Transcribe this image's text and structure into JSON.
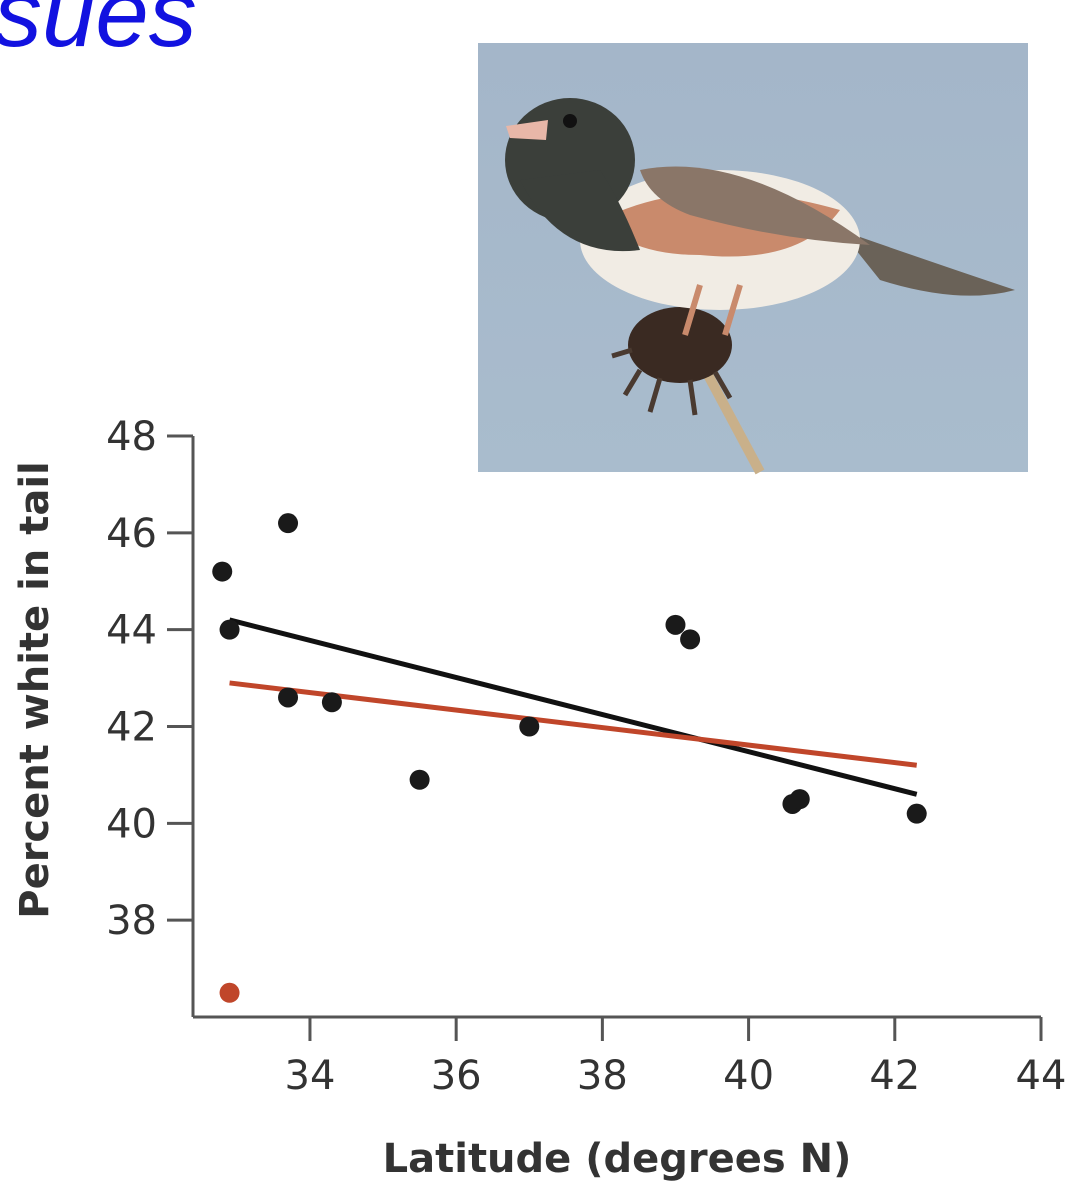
{
  "heading": {
    "text": "sues"
  },
  "photo": {
    "alt": "junco-bird"
  },
  "chart_data": {
    "type": "scatter",
    "xlabel": "Latitude (degrees N)",
    "ylabel": "Percent white in tail",
    "xlim": [
      32.4,
      44
    ],
    "ylim": [
      36,
      48
    ],
    "xticks": [
      34,
      36,
      38,
      40,
      42,
      44
    ],
    "yticks": [
      38,
      40,
      42,
      44,
      46,
      48
    ],
    "grid": false,
    "points": [
      {
        "x": 32.8,
        "y": 45.2,
        "color": "#1a1a1a"
      },
      {
        "x": 32.9,
        "y": 44.0,
        "color": "#1a1a1a"
      },
      {
        "x": 33.7,
        "y": 46.2,
        "color": "#1a1a1a"
      },
      {
        "x": 33.7,
        "y": 42.6,
        "color": "#1a1a1a"
      },
      {
        "x": 34.3,
        "y": 42.5,
        "color": "#1a1a1a"
      },
      {
        "x": 35.5,
        "y": 40.9,
        "color": "#1a1a1a"
      },
      {
        "x": 37.0,
        "y": 42.0,
        "color": "#1a1a1a"
      },
      {
        "x": 39.0,
        "y": 44.1,
        "color": "#1a1a1a"
      },
      {
        "x": 39.2,
        "y": 43.8,
        "color": "#1a1a1a"
      },
      {
        "x": 40.6,
        "y": 40.4,
        "color": "#1a1a1a"
      },
      {
        "x": 40.7,
        "y": 40.5,
        "color": "#1a1a1a"
      },
      {
        "x": 42.3,
        "y": 40.2,
        "color": "#1a1a1a"
      },
      {
        "x": 32.9,
        "y": 36.5,
        "color": "#c0462a"
      }
    ],
    "fit_lines": [
      {
        "x": [
          32.9,
          42.3
        ],
        "y": [
          44.2,
          40.6
        ],
        "color": "#111111"
      },
      {
        "x": [
          32.9,
          42.3
        ],
        "y": [
          42.9,
          41.2
        ],
        "color": "#c0462a"
      }
    ]
  }
}
